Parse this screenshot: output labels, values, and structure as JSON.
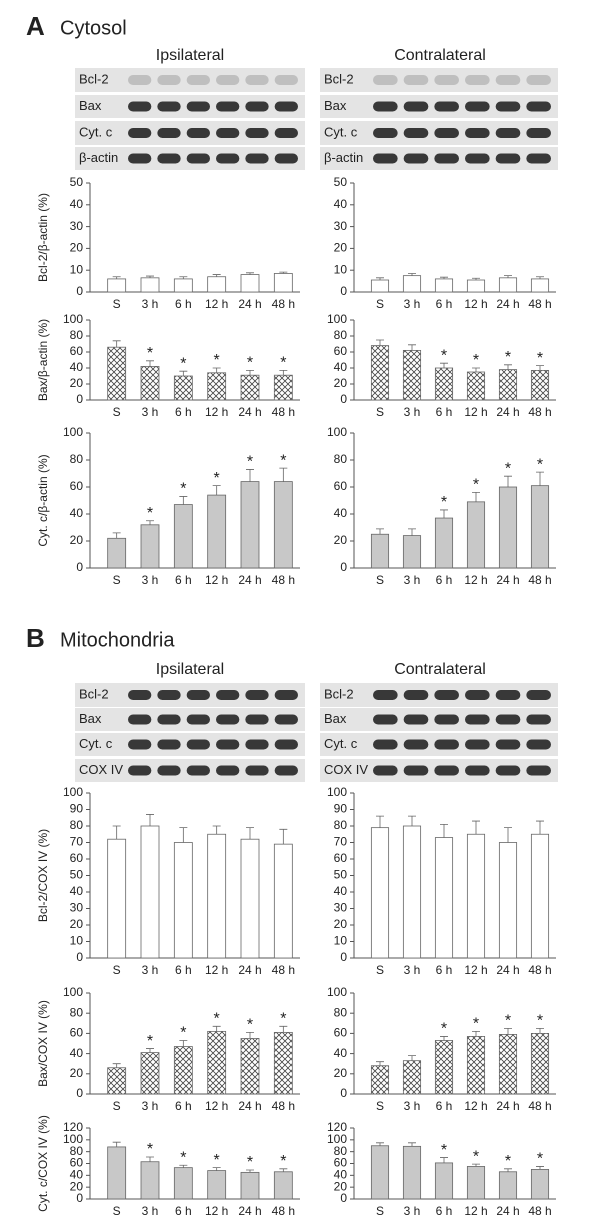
{
  "sections": [
    {
      "label": "A",
      "title": "Cytosol",
      "columns": [
        {
          "title": "Ipsilateral",
          "blots": [
            "Bcl-2",
            "Bax",
            "Cyt. c",
            "β-actin"
          ]
        },
        {
          "title": "Contralateral",
          "blots": [
            "Bcl-2",
            "Bax",
            "Cyt. c",
            "β-actin"
          ]
        }
      ]
    },
    {
      "label": "B",
      "title": "Mitochondria",
      "columns": [
        {
          "title": "Ipsilateral",
          "blots": [
            "Bcl-2",
            "Bax",
            "Cyt. c",
            "COX IV"
          ]
        },
        {
          "title": "Contralateral",
          "blots": [
            "Bcl-2",
            "Bax",
            "Cyt. c",
            "COX IV"
          ]
        }
      ]
    }
  ],
  "chart_data": [
    {
      "type": "bar",
      "ylabel": "Bcl-2/β-actin (%)",
      "categories": [
        "S",
        "3 h",
        "6 h",
        "12 h",
        "24 h",
        "48 h"
      ],
      "values": [
        6,
        6.5,
        6,
        7,
        8,
        8.5
      ],
      "errors": [
        1,
        0.8,
        1,
        1,
        0.8,
        0.6
      ],
      "annotations": [
        null,
        null,
        null,
        null,
        null,
        null
      ],
      "color": "#ffffff",
      "ylim": [
        0,
        50
      ],
      "yticks": [
        0,
        10,
        20,
        30,
        40,
        50
      ]
    },
    {
      "type": "bar",
      "ylabel": "Bax/β-actin (%)",
      "categories": [
        "S",
        "3 h",
        "6 h",
        "12 h",
        "24 h",
        "48 h"
      ],
      "values": [
        66,
        42,
        30,
        34,
        31,
        31
      ],
      "errors": [
        8,
        7,
        6,
        6,
        6,
        6
      ],
      "annotations": [
        null,
        "*",
        "*",
        "*",
        "*",
        "*"
      ],
      "color": "#ffffff",
      "pattern": "crosshatch",
      "ylim": [
        0,
        100
      ],
      "yticks": [
        0,
        20,
        40,
        60,
        80,
        100
      ]
    },
    {
      "type": "bar",
      "ylabel": "Cyt. c/β-actin (%)",
      "categories": [
        "S",
        "3 h",
        "6 h",
        "12 h",
        "24 h",
        "48 h"
      ],
      "values": [
        22,
        32,
        47,
        54,
        64,
        64
      ],
      "errors": [
        4,
        3,
        6,
        7,
        9,
        10
      ],
      "annotations": [
        null,
        "*",
        "*",
        "*",
        "*",
        "*"
      ],
      "color": "#c8c8c8",
      "ylim": [
        0,
        100
      ],
      "yticks": [
        0,
        20,
        40,
        60,
        80,
        100
      ]
    },
    {
      "type": "bar",
      "categories": [
        "S",
        "3 h",
        "6 h",
        "12 h",
        "24 h",
        "48 h"
      ],
      "values": [
        5.5,
        7.5,
        6,
        5.5,
        6.5,
        6
      ],
      "errors": [
        1,
        1,
        0.8,
        0.8,
        1,
        1
      ],
      "annotations": [
        null,
        null,
        null,
        null,
        null,
        null
      ],
      "color": "#ffffff",
      "ylim": [
        0,
        50
      ],
      "yticks": [
        0,
        10,
        20,
        30,
        40,
        50
      ]
    },
    {
      "type": "bar",
      "categories": [
        "S",
        "3 h",
        "6 h",
        "12 h",
        "24 h",
        "48 h"
      ],
      "values": [
        68,
        62,
        40,
        35,
        38,
        37
      ],
      "errors": [
        7,
        7,
        6,
        5,
        6,
        6
      ],
      "annotations": [
        null,
        null,
        "*",
        "*",
        "*",
        "*"
      ],
      "color": "#ffffff",
      "pattern": "crosshatch",
      "ylim": [
        0,
        100
      ],
      "yticks": [
        0,
        20,
        40,
        60,
        80,
        100
      ]
    },
    {
      "type": "bar",
      "categories": [
        "S",
        "3 h",
        "6 h",
        "12 h",
        "24 h",
        "48 h"
      ],
      "values": [
        25,
        24,
        37,
        49,
        60,
        61
      ],
      "errors": [
        4,
        5,
        6,
        7,
        8,
        10
      ],
      "annotations": [
        null,
        null,
        "*",
        "*",
        "*",
        "*"
      ],
      "color": "#c8c8c8",
      "ylim": [
        0,
        100
      ],
      "yticks": [
        0,
        20,
        40,
        60,
        80,
        100
      ]
    },
    {
      "type": "bar",
      "ylabel": "Bcl-2/COX IV (%)",
      "categories": [
        "S",
        "3 h",
        "6 h",
        "12 h",
        "24 h",
        "48 h"
      ],
      "values": [
        72,
        80,
        70,
        75,
        72,
        69
      ],
      "errors": [
        8,
        7,
        9,
        5,
        7,
        9
      ],
      "annotations": [
        null,
        null,
        null,
        null,
        null,
        null
      ],
      "color": "#ffffff",
      "ylim": [
        0,
        100
      ],
      "yticks": [
        0,
        10,
        20,
        30,
        40,
        50,
        60,
        70,
        80,
        90,
        100
      ]
    },
    {
      "type": "bar",
      "ylabel": "Bax/COX IV (%)",
      "categories": [
        "S",
        "3 h",
        "6 h",
        "12 h",
        "24 h",
        "48 h"
      ],
      "values": [
        26,
        41,
        47,
        62,
        55,
        61
      ],
      "errors": [
        4,
        4,
        6,
        5,
        6,
        6
      ],
      "annotations": [
        null,
        "*",
        "*",
        "*",
        "*",
        "*"
      ],
      "color": "#ffffff",
      "pattern": "crosshatch",
      "ylim": [
        0,
        100
      ],
      "yticks": [
        0,
        20,
        40,
        60,
        80,
        100
      ]
    },
    {
      "type": "bar",
      "ylabel": "Cyt. c/COX IV (%)",
      "categories": [
        "S",
        "3 h",
        "6 h",
        "12 h",
        "24 h",
        "48 h"
      ],
      "values": [
        88,
        63,
        53,
        48,
        45,
        46
      ],
      "errors": [
        8,
        8,
        4,
        5,
        4,
        5
      ],
      "annotations": [
        null,
        "*",
        "*",
        "*",
        "*",
        "*"
      ],
      "color": "#c8c8c8",
      "ylim": [
        0,
        120
      ],
      "yticks": [
        0,
        20,
        40,
        60,
        80,
        100,
        120
      ]
    },
    {
      "type": "bar",
      "categories": [
        "S",
        "3 h",
        "6 h",
        "12 h",
        "24 h",
        "48 h"
      ],
      "values": [
        79,
        80,
        73,
        75,
        70,
        75
      ],
      "errors": [
        7,
        6,
        8,
        8,
        9,
        8
      ],
      "annotations": [
        null,
        null,
        null,
        null,
        null,
        null
      ],
      "color": "#ffffff",
      "ylim": [
        0,
        100
      ],
      "yticks": [
        0,
        10,
        20,
        30,
        40,
        50,
        60,
        70,
        80,
        90,
        100
      ]
    },
    {
      "type": "bar",
      "categories": [
        "S",
        "3 h",
        "6 h",
        "12 h",
        "24 h",
        "48 h"
      ],
      "values": [
        28,
        33,
        53,
        57,
        59,
        60
      ],
      "errors": [
        4,
        5,
        4,
        5,
        6,
        5
      ],
      "annotations": [
        null,
        null,
        "*",
        "*",
        "*",
        "*"
      ],
      "color": "#ffffff",
      "pattern": "crosshatch",
      "ylim": [
        0,
        100
      ],
      "yticks": [
        0,
        20,
        40,
        60,
        80,
        100
      ]
    },
    {
      "type": "bar",
      "categories": [
        "S",
        "3 h",
        "6 h",
        "12 h",
        "24 h",
        "48 h"
      ],
      "values": [
        90,
        89,
        61,
        55,
        46,
        50
      ],
      "errors": [
        5,
        6,
        9,
        4,
        5,
        5
      ],
      "annotations": [
        null,
        null,
        "*",
        "*",
        "*",
        "*"
      ],
      "color": "#c8c8c8",
      "ylim": [
        0,
        120
      ],
      "yticks": [
        0,
        20,
        40,
        60,
        80,
        100,
        120
      ]
    }
  ]
}
